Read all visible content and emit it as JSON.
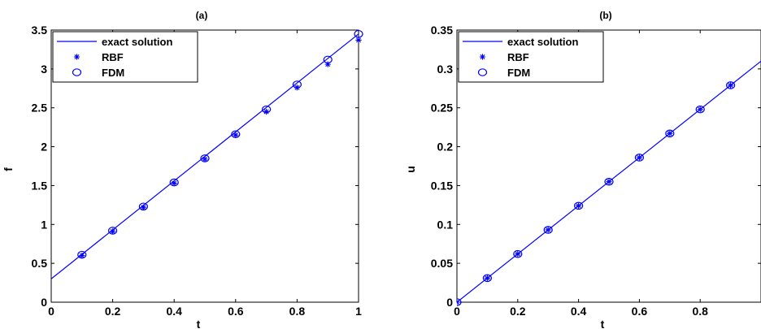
{
  "colors": {
    "series": "#0000ff",
    "axes": "#000000",
    "background": "#ffffff"
  },
  "chart_data": [
    {
      "type": "line",
      "title": "(a)",
      "xlabel": "t",
      "ylabel": "f",
      "xlim": [
        0,
        1
      ],
      "ylim": [
        0,
        3.5
      ],
      "xticks": [
        0,
        0.2,
        0.4,
        0.6,
        0.8,
        1
      ],
      "yticks": [
        0,
        0.5,
        1,
        1.5,
        2,
        2.5,
        3,
        3.5
      ],
      "xtick_labels": [
        "0",
        "0.2",
        "0.4",
        "0.6",
        "0.8",
        "1"
      ],
      "ytick_labels": [
        "0",
        "0.5",
        "1",
        "1.5",
        "2",
        "2.5",
        "3",
        "3.5"
      ],
      "grid": false,
      "legend_position": "top-left",
      "series": [
        {
          "name": "exact solution",
          "style": "line",
          "x": [
            0,
            1
          ],
          "y": [
            0.3,
            3.45
          ]
        },
        {
          "name": "RBF",
          "style": "asterisk",
          "x": [
            0.1,
            0.2,
            0.3,
            0.4,
            0.5,
            0.6,
            0.7,
            0.8,
            0.9,
            1.0
          ],
          "y": [
            0.6,
            0.91,
            1.22,
            1.53,
            1.84,
            2.15,
            2.45,
            2.76,
            3.06,
            3.37
          ]
        },
        {
          "name": "FDM",
          "style": "circle",
          "x": [
            0.1,
            0.2,
            0.3,
            0.4,
            0.5,
            0.6,
            0.7,
            0.8,
            0.9,
            1.0
          ],
          "y": [
            0.61,
            0.92,
            1.23,
            1.54,
            1.85,
            2.16,
            2.48,
            2.8,
            3.12,
            3.45
          ]
        }
      ]
    },
    {
      "type": "line",
      "title": "(b)",
      "xlabel": "t",
      "ylabel": "u",
      "xlim": [
        0,
        1
      ],
      "ylim": [
        0,
        0.35
      ],
      "xticks": [
        0,
        0.2,
        0.4,
        0.6,
        0.8
      ],
      "yticks": [
        0,
        0.05,
        0.1,
        0.15,
        0.2,
        0.25,
        0.3,
        0.35
      ],
      "xtick_labels": [
        "0",
        "0.2",
        "0.4",
        "0.6",
        "0.8"
      ],
      "ytick_labels": [
        "0",
        "0.05",
        "0.1",
        "0.15",
        "0.2",
        "0.25",
        "0.3",
        "0.35"
      ],
      "grid": false,
      "legend_position": "top-left",
      "series": [
        {
          "name": "exact solution",
          "style": "line",
          "x": [
            0,
            1
          ],
          "y": [
            0,
            0.31
          ]
        },
        {
          "name": "RBF",
          "style": "asterisk",
          "x": [
            0,
            0.1,
            0.2,
            0.3,
            0.4,
            0.5,
            0.6,
            0.7,
            0.8,
            0.9
          ],
          "y": [
            0,
            0.031,
            0.062,
            0.093,
            0.124,
            0.155,
            0.186,
            0.217,
            0.248,
            0.279
          ]
        },
        {
          "name": "FDM",
          "style": "circle",
          "x": [
            0,
            0.1,
            0.2,
            0.3,
            0.4,
            0.5,
            0.6,
            0.7,
            0.8,
            0.9
          ],
          "y": [
            0,
            0.031,
            0.062,
            0.093,
            0.124,
            0.155,
            0.186,
            0.217,
            0.248,
            0.279
          ]
        }
      ]
    }
  ]
}
